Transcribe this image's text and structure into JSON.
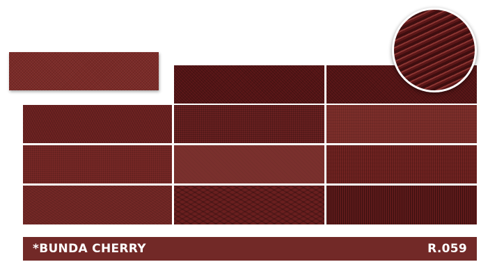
{
  "product": {
    "name": "*BUNDA CHERRY",
    "code": "R.059"
  },
  "colors": {
    "cherry": "#722927",
    "cherry_dark": "#5b1718",
    "text": "#ffffff"
  },
  "swatches": [
    {
      "name": "single-swatch",
      "pattern": "fine-diagonal"
    },
    {
      "name": "tile-r1-c2",
      "pattern": "dark-diagonal"
    },
    {
      "name": "tile-r1-c3",
      "pattern": "dark-diagonal"
    },
    {
      "name": "tile-r2-c1",
      "pattern": "herringbone"
    },
    {
      "name": "tile-r2-c2",
      "pattern": "grid"
    },
    {
      "name": "tile-r2-c3",
      "pattern": "light-grid"
    },
    {
      "name": "tile-r3-c1",
      "pattern": "dots"
    },
    {
      "name": "tile-r3-c2",
      "pattern": "smooth"
    },
    {
      "name": "tile-r3-c3",
      "pattern": "crosshatch"
    },
    {
      "name": "tile-r4-c1",
      "pattern": "twill"
    },
    {
      "name": "tile-r4-c2",
      "pattern": "wave"
    },
    {
      "name": "tile-r4-c3",
      "pattern": "vertical-stripes"
    }
  ],
  "zoom_detail": {
    "icon": "magnified-texture",
    "pattern": "diagonal-ribs"
  }
}
